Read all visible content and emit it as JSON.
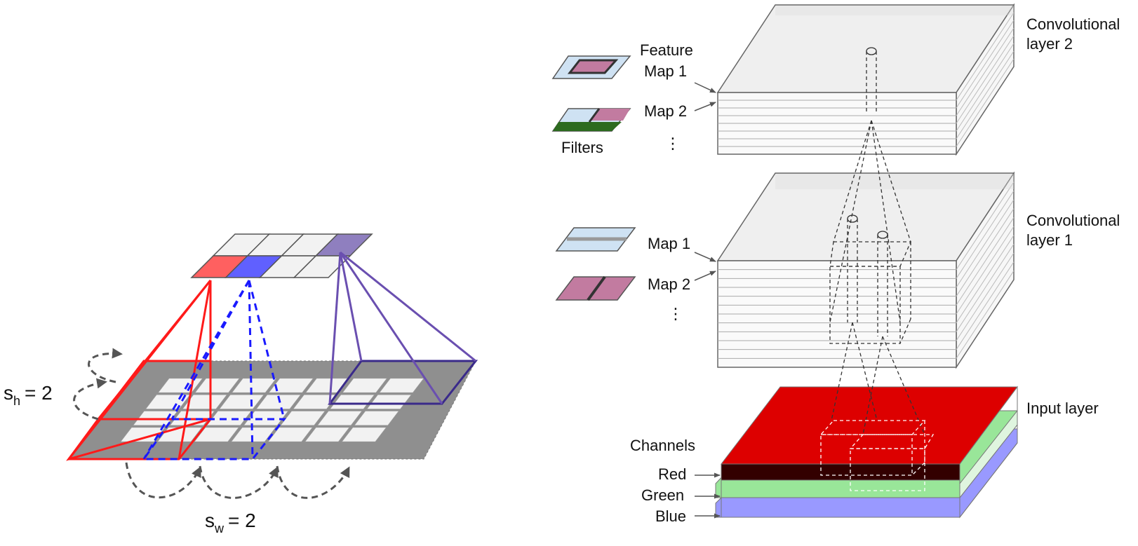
{
  "stride": {
    "sh_symbol": "s",
    "sh_sub": "h",
    "sh_value": "= 2",
    "sw_symbol": "s",
    "sw_sub": "w",
    "sw_value": "= 2"
  },
  "filters_legend": {
    "feature_label": "Feature",
    "map1_label": "Map 1",
    "map2_label": "Map 2",
    "filters_label": "Filters",
    "ellipsis": "⋮"
  },
  "layer1_legend": {
    "map1_label": "Map 1",
    "map2_label": "Map 2",
    "ellipsis": "⋮"
  },
  "layers": {
    "conv2_line1": "Convolutional",
    "conv2_line2": "layer 2",
    "conv1_line1": "Convolutional",
    "conv1_line2": "layer 1",
    "input": "Input layer"
  },
  "channels": {
    "title": "Channels",
    "red": "Red",
    "green": "Green",
    "blue": "Blue"
  },
  "colors": {
    "red": "#ff1a1a",
    "blue": "#1a1aff",
    "purple": "#6a4fb0",
    "green_text": "#2e6b1f",
    "blue_text": "#1a1aff",
    "red_text": "#e01010"
  }
}
